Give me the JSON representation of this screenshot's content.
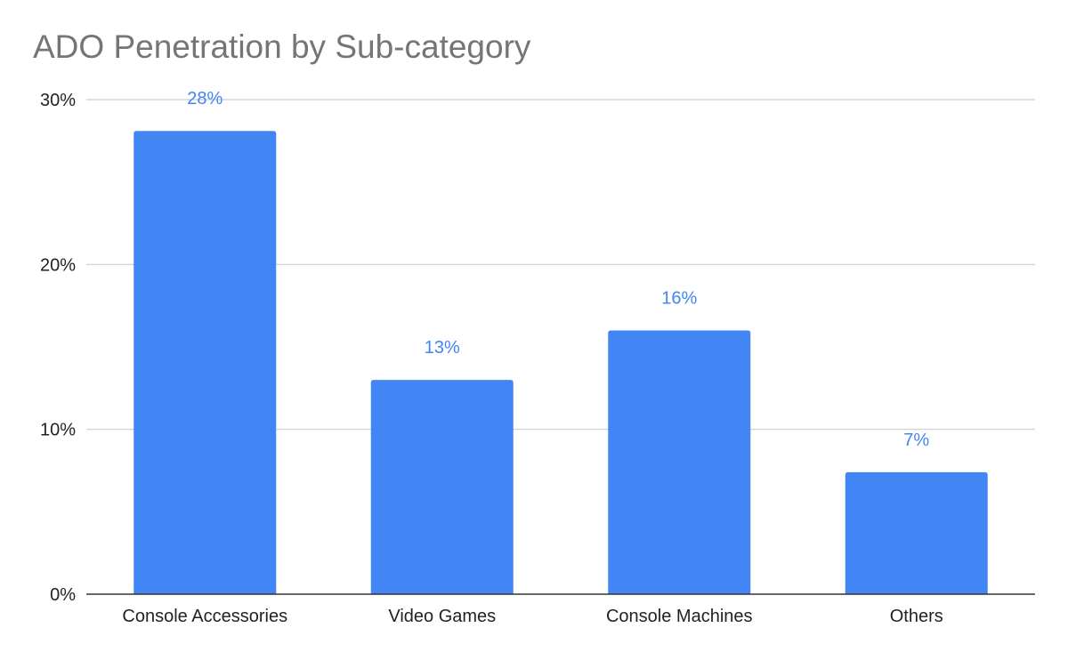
{
  "chart_data": {
    "type": "bar",
    "title": "ADO Penetration by Sub-category",
    "xlabel": "",
    "ylabel": "",
    "categories": [
      "Console Accessories",
      "Video Games",
      "Console Machines",
      "Others"
    ],
    "values": [
      28.1,
      13.0,
      16.0,
      7.4
    ],
    "data_labels": [
      "28%",
      "13%",
      "16%",
      "7%"
    ],
    "ylim": [
      0,
      30
    ],
    "yticks": [
      0,
      10,
      20,
      30
    ],
    "ytick_labels": [
      "0%",
      "10%",
      "20%",
      "30%"
    ],
    "grid": true,
    "legend": "none",
    "colors": {
      "bar": "#4285f4",
      "data_label": "#4285f4",
      "grid": "#cccccc",
      "axis": "#333333",
      "title": "#757575"
    }
  }
}
